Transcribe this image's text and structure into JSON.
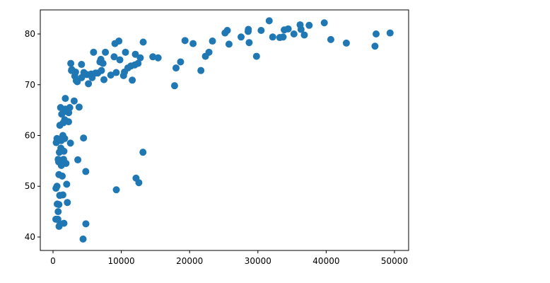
{
  "chart_data": {
    "type": "scatter",
    "color": "#1f77b4",
    "x": [
      49357,
      47307,
      47143,
      42952,
      40676,
      39725,
      37506,
      36798,
      36319,
      36181,
      35278,
      34435,
      33860,
      33693,
      33207,
      32170,
      31656,
      30470,
      29796,
      28718,
      28570,
      28604,
      27538,
      25768,
      25523,
      25185,
      23348,
      22833,
      22316,
      21655,
      20510,
      19328,
      18678,
      18009,
      17800,
      15390,
      14619,
      13206,
      13171,
      12779,
      12570,
      12452,
      12154,
      12057,
      11977,
      11605,
      11416,
      10956,
      10611,
      10461,
      10331,
      9786,
      9645,
      9269,
      9253,
      9065,
      8948,
      8458,
      7670,
      7458,
      7320,
      7092,
      7006,
      6873,
      6557,
      6223,
      5937,
      5728,
      5581,
      5186,
      4959,
      4797,
      4811,
      4513,
      4471,
      4184,
      4173,
      3820,
      3548,
      3632,
      3190,
      3095,
      2749,
      2602,
      2452,
      2280,
      2042,
      1803,
      1791,
      1713,
      1704,
      1598,
      1545,
      1441,
      1441,
      1271,
      1217,
      1107,
      1056,
      926,
      883,
      863,
      863,
      824,
      752,
      706,
      620,
      580,
      470,
      415,
      430,
      580,
      750,
      1000,
      1200,
      2000,
      1600,
      2100,
      4400,
      2550,
      1350,
      1900,
      2300,
      3300,
      1150,
      980,
      1500,
      2700,
      3400
    ],
    "y": [
      80.2,
      80.0,
      77.6,
      78.2,
      78.9,
      82.2,
      81.7,
      79.8,
      80.9,
      81.8,
      80.0,
      81.0,
      80.8,
      79.4,
      79.3,
      79.4,
      82.6,
      80.7,
      75.6,
      78.3,
      80.5,
      80.9,
      79.4,
      78.0,
      80.7,
      80.2,
      78.6,
      76.4,
      75.6,
      72.8,
      78.1,
      78.7,
      74.5,
      73.3,
      69.8,
      75.3,
      75.5,
      78.4,
      56.7,
      75.3,
      50.7,
      74.2,
      51.6,
      76.0,
      73.9,
      70.9,
      73.7,
      73.3,
      76.4,
      72.5,
      71.8,
      74.9,
      78.6,
      49.3,
      72.4,
      78.1,
      75.5,
      71.9,
      76.4,
      71.0,
      74.2,
      72.8,
      75.0,
      74.5,
      72.3,
      72.3,
      76.4,
      71.4,
      72.1,
      70.2,
      72.0,
      52.9,
      42.6,
      72.4,
      59.5,
      71.4,
      74.0,
      65.6,
      70.6,
      55.2,
      71.7,
      66.8,
      73.0,
      74.2,
      65.5,
      62.7,
      64.7,
      67.3,
      65.2,
      63.1,
      59.4,
      56.9,
      55.3,
      60.0,
      48.3,
      64.2,
      54.1,
      65.5,
      42.6,
      56.7,
      42.1,
      52.3,
      46.4,
      54.8,
      55.3,
      43.5,
      46.5,
      59.4,
      58.6,
      43.5,
      49.6,
      50.0,
      45.0,
      62.0,
      59.0,
      50.4,
      42.7,
      46.8,
      39.6,
      58.5,
      52.0,
      54.5,
      64.5,
      72.5,
      57.5,
      48.2,
      62.5,
      72.8,
      70.8
    ],
    "xlim": [
      -1863,
      52070
    ],
    "ylim": [
      37.35,
      84.74
    ],
    "xticks": [
      0,
      10000,
      20000,
      30000,
      40000,
      50000
    ],
    "yticks": [
      40,
      50,
      60,
      70,
      80
    ]
  }
}
